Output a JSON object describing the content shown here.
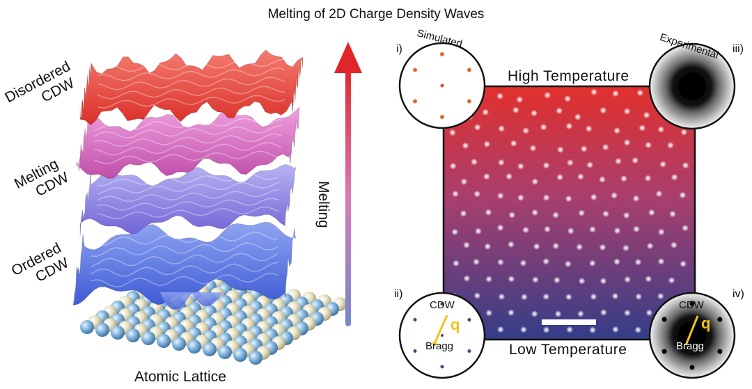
{
  "title": "Melting of 2D Charge Density Waves",
  "left_panel": {
    "layers": [
      {
        "label_line1": "Disordered",
        "label_line2": "CDW",
        "color": "#e8443a"
      },
      {
        "label_line1": "Melting",
        "label_line2": "CDW",
        "color": "#d765c1"
      },
      {
        "label_line1": "Ordered",
        "label_line2": "CDW",
        "color": "#5b72e0"
      }
    ],
    "second_layer_color": "#8d7fe3",
    "lattice_label": "Atomic Lattice",
    "lattice_colors": {
      "cream": "#e6dfbc",
      "blue": "#7fb3dd"
    }
  },
  "arrow": {
    "label": "Melting",
    "top_color": "#e0262a",
    "bottom_color": "#7688cc"
  },
  "right_panel": {
    "high_label": "High Temperature",
    "low_label": "Low Temperature",
    "gradient_top": "#e2302c",
    "gradient_bottom": "#333d88",
    "insets": [
      {
        "roman": "i)",
        "caption": "Simulated"
      },
      {
        "roman": "iii)",
        "caption": "Experimental"
      },
      {
        "roman": "ii)",
        "cdw": "CDW",
        "bragg": "Bragg",
        "q": "q"
      },
      {
        "roman": "iv)",
        "cdw": "CDW",
        "bragg": "Bragg",
        "q": "q"
      }
    ],
    "q_color": "#f0c419"
  }
}
